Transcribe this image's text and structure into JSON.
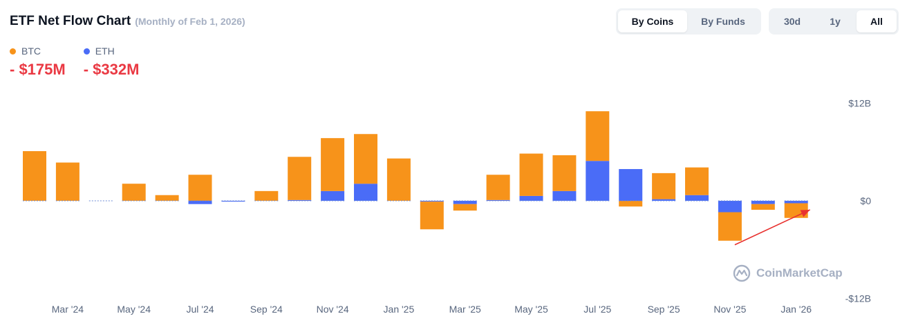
{
  "header": {
    "title": "ETF Net Flow Chart",
    "subtitle": "(Monthly of Feb 1, 2026)"
  },
  "legend": [
    {
      "name": "BTC",
      "value": "- $175M",
      "color": "#f7931a"
    },
    {
      "name": "ETH",
      "value": "- $332M",
      "color": "#4a6cf7"
    }
  ],
  "toggles": {
    "view": {
      "options": [
        "By Coins",
        "By Funds"
      ],
      "selected": "By Coins"
    },
    "range": {
      "options": [
        "30d",
        "1y",
        "All"
      ],
      "selected": "All"
    }
  },
  "watermark": "CoinMarketCap",
  "chart_data": {
    "type": "bar",
    "stacked": true,
    "unit": "USD billions",
    "ylim": [
      -12,
      12
    ],
    "y_ticks": [
      {
        "value": 12,
        "label": "$12B"
      },
      {
        "value": 0,
        "label": "$0"
      },
      {
        "value": -12,
        "label": "-$12B"
      }
    ],
    "categories": [
      "Feb '24",
      "Mar '24",
      "Apr '24",
      "May '24",
      "Jun '24",
      "Jul '24",
      "Aug '24",
      "Sep '24",
      "Oct '24",
      "Nov '24",
      "Dec '24",
      "Jan '25",
      "Feb '25",
      "Mar '25",
      "Apr '25",
      "May '25",
      "Jun '25",
      "Jul '25",
      "Aug '25",
      "Sep '25",
      "Oct '25",
      "Nov '25",
      "Dec '25",
      "Jan '26"
    ],
    "x_tick_labels": [
      {
        "index": 1,
        "label": "Mar '24"
      },
      {
        "index": 3,
        "label": "May '24"
      },
      {
        "index": 5,
        "label": "Jul '24"
      },
      {
        "index": 7,
        "label": "Sep '24"
      },
      {
        "index": 9,
        "label": "Nov '24"
      },
      {
        "index": 11,
        "label": "Jan '25"
      },
      {
        "index": 13,
        "label": "Mar '25"
      },
      {
        "index": 15,
        "label": "May '25"
      },
      {
        "index": 17,
        "label": "Jul '25"
      },
      {
        "index": 19,
        "label": "Sep '25"
      },
      {
        "index": 21,
        "label": "Nov '25"
      },
      {
        "index": 23,
        "label": "Jan '26"
      }
    ],
    "series": [
      {
        "name": "BTC",
        "color": "#f7931a",
        "values": [
          6.1,
          4.7,
          0,
          2.1,
          0.7,
          3.2,
          0.0,
          1.2,
          5.3,
          6.5,
          6.1,
          5.2,
          -3.4,
          -0.8,
          3.1,
          5.2,
          4.4,
          6.1,
          -0.7,
          3.2,
          3.4,
          -3.5,
          -0.7,
          -1.8
        ]
      },
      {
        "name": "ETH",
        "color": "#4a6cf7",
        "values": [
          0,
          0,
          0,
          0,
          0,
          -0.4,
          -0.1,
          0,
          0.1,
          1.2,
          2.1,
          0,
          -0.1,
          -0.4,
          0.1,
          0.6,
          1.2,
          4.9,
          3.9,
          0.2,
          0.7,
          -1.4,
          -0.4,
          -0.3
        ]
      }
    ],
    "annotations": [
      {
        "type": "arrow",
        "color": "#e8312f",
        "from_index": 21,
        "to_index": 23,
        "from_value": -5.4,
        "to_value": -1.1
      }
    ],
    "grid": false,
    "legend_position": "top-left"
  }
}
